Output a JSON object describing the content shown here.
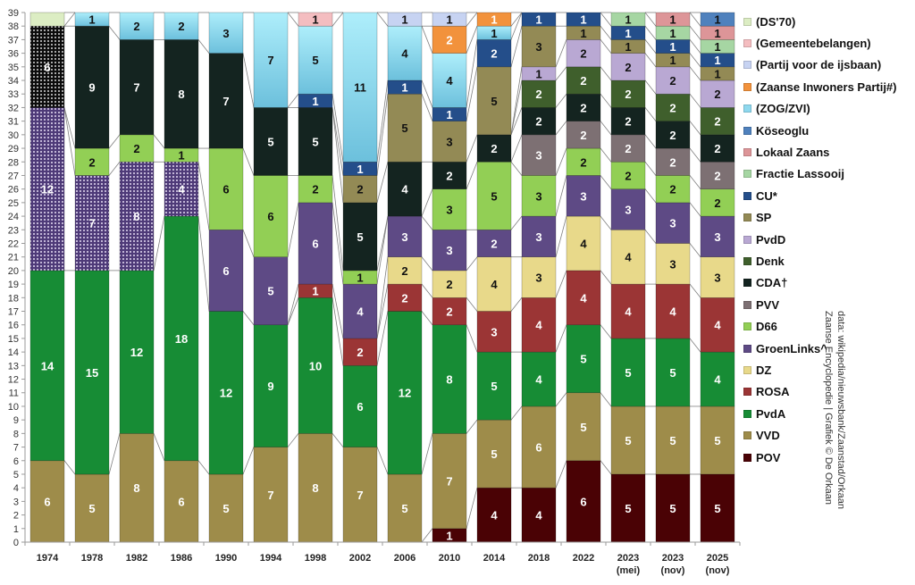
{
  "chart_data": {
    "type": "bar",
    "stacked": true,
    "title": "",
    "xlabel": "",
    "ylabel": "",
    "ylim": [
      0,
      39
    ],
    "yticks": [
      0,
      1,
      2,
      3,
      4,
      5,
      6,
      7,
      8,
      9,
      10,
      11,
      12,
      13,
      14,
      15,
      16,
      17,
      18,
      19,
      20,
      21,
      22,
      23,
      24,
      25,
      26,
      27,
      28,
      29,
      30,
      31,
      32,
      33,
      34,
      35,
      36,
      37,
      38,
      39
    ],
    "categories": [
      "1974",
      "1978",
      "1982",
      "1986",
      "1990",
      "1994",
      "1998",
      "2002",
      "2006",
      "2010",
      "2014",
      "2018",
      "2022",
      "2023 (mei)",
      "2023 (nov)",
      "2025 (nov)"
    ],
    "category_lines": [
      [
        "1974"
      ],
      [
        "1978"
      ],
      [
        "1982"
      ],
      [
        "1986"
      ],
      [
        "1990"
      ],
      [
        "1994"
      ],
      [
        "1998"
      ],
      [
        "2002"
      ],
      [
        "2006"
      ],
      [
        "2010"
      ],
      [
        "2014"
      ],
      [
        "2018"
      ],
      [
        "2022"
      ],
      [
        "2023",
        "(mei)"
      ],
      [
        "2023",
        "(nov)"
      ],
      [
        "2025",
        "(nov)"
      ]
    ],
    "series": [
      {
        "name": "POV",
        "color": "#4a0205",
        "text": "#ffffff",
        "values": [
          0,
          0,
          0,
          0,
          0,
          0,
          0,
          0,
          0,
          1,
          4,
          4,
          6,
          5,
          5,
          5
        ]
      },
      {
        "name": "VVD",
        "color": "#9e8c4a",
        "text": "#ffffff",
        "values": [
          6,
          5,
          8,
          6,
          5,
          7,
          8,
          7,
          5,
          7,
          5,
          6,
          5,
          5,
          5,
          5
        ]
      },
      {
        "name": "PvdA",
        "color": "#178c35",
        "text": "#ffffff",
        "values": [
          14,
          15,
          12,
          18,
          12,
          9,
          10,
          6,
          12,
          8,
          5,
          4,
          5,
          5,
          5,
          4
        ]
      },
      {
        "name": "ROSA",
        "color": "#9b3535",
        "text": "#ffffff",
        "values": [
          0,
          0,
          0,
          0,
          0,
          0,
          1,
          2,
          2,
          2,
          3,
          4,
          4,
          4,
          4,
          4
        ]
      },
      {
        "name": "DZ",
        "color": "#e8d98a",
        "text": "#111111",
        "values": [
          0,
          0,
          0,
          0,
          0,
          0,
          0,
          0,
          2,
          2,
          4,
          3,
          4,
          4,
          3,
          3
        ]
      },
      {
        "name": "GroenLinks^",
        "color": "#5e4a85",
        "text": "#ffffff",
        "values": [
          12,
          7,
          8,
          4,
          6,
          5,
          6,
          4,
          3,
          3,
          2,
          3,
          3,
          3,
          3,
          3
        ],
        "dotted": [
          true,
          true,
          true,
          true,
          false,
          false,
          false,
          false,
          false,
          false,
          false,
          false,
          false,
          false,
          false,
          false
        ]
      },
      {
        "name": "D66",
        "color": "#92cf55",
        "text": "#111111",
        "values": [
          0,
          2,
          2,
          1,
          6,
          6,
          2,
          1,
          0,
          3,
          5,
          3,
          2,
          2,
          2,
          2
        ]
      },
      {
        "name": "PVV",
        "color": "#7d7073",
        "text": "#ffffff",
        "values": [
          0,
          0,
          0,
          0,
          0,
          0,
          0,
          0,
          0,
          0,
          0,
          3,
          2,
          2,
          2,
          2
        ]
      },
      {
        "name": "CDA†",
        "color": "#142420",
        "text": "#ffffff",
        "values": [
          6,
          9,
          7,
          8,
          7,
          5,
          5,
          5,
          4,
          2,
          2,
          2,
          2,
          2,
          2,
          2
        ],
        "dotted": [
          true,
          false,
          false,
          false,
          false,
          false,
          false,
          false,
          false,
          false,
          false,
          false,
          false,
          false,
          false,
          false
        ]
      },
      {
        "name": "Denk",
        "color": "#3f5f2c",
        "text": "#ffffff",
        "values": [
          0,
          0,
          0,
          0,
          0,
          0,
          0,
          0,
          0,
          0,
          0,
          2,
          2,
          2,
          2,
          2
        ]
      },
      {
        "name": "PvdD",
        "color": "#b9a8d3",
        "text": "#111111",
        "values": [
          0,
          0,
          0,
          0,
          0,
          0,
          0,
          0,
          0,
          0,
          0,
          1,
          2,
          2,
          2,
          2
        ]
      },
      {
        "name": "SP",
        "color": "#938a55",
        "text": "#111111",
        "values": [
          0,
          0,
          0,
          0,
          0,
          0,
          0,
          2,
          5,
          3,
          5,
          3,
          1,
          1,
          1,
          1
        ]
      },
      {
        "name": "CU*",
        "color": "#244e8a",
        "text": "#ffffff",
        "values": [
          0,
          0,
          0,
          0,
          0,
          0,
          1,
          1,
          1,
          1,
          2,
          1,
          1,
          1,
          1,
          1
        ]
      },
      {
        "name": "Fractie Lassooij",
        "color": "#a6d6a3",
        "text": "#111111",
        "values": [
          0,
          0,
          0,
          0,
          0,
          0,
          0,
          0,
          0,
          0,
          0,
          0,
          0,
          1,
          1,
          1
        ]
      },
      {
        "name": "Lokaal Zaans",
        "color": "#dd9598",
        "text": "#111111",
        "values": [
          0,
          0,
          0,
          0,
          0,
          0,
          0,
          0,
          0,
          0,
          0,
          0,
          0,
          0,
          1,
          1
        ]
      },
      {
        "name": "Köseoglu",
        "color": "#4f81bd",
        "text": "#111111",
        "values": [
          0,
          0,
          0,
          0,
          0,
          0,
          0,
          0,
          0,
          0,
          0,
          0,
          0,
          0,
          0,
          1
        ]
      },
      {
        "name": "(ZOG/ZVI)",
        "color": "#8ed8ee",
        "text": "#111111",
        "values": [
          0,
          1,
          2,
          2,
          3,
          7,
          5,
          11,
          4,
          4,
          1,
          0,
          0,
          0,
          0,
          0
        ]
      },
      {
        "name": "(Zaanse Inwoners Partij#)",
        "color": "#f2923c",
        "text": "#ffffff",
        "values": [
          0,
          0,
          0,
          0,
          0,
          0,
          0,
          0,
          0,
          2,
          1,
          0,
          0,
          0,
          0,
          0
        ]
      },
      {
        "name": "(Partij voor de ijsbaan)",
        "color": "#c7d3f2",
        "text": "#111111",
        "values": [
          0,
          0,
          0,
          0,
          0,
          0,
          0,
          0,
          1,
          1,
          0,
          0,
          0,
          0,
          0,
          0
        ]
      },
      {
        "name": "(Gemeentebelangen)",
        "color": "#f4bdc0",
        "text": "#111111",
        "values": [
          0,
          0,
          0,
          0,
          0,
          0,
          1,
          0,
          0,
          0,
          0,
          0,
          0,
          0,
          0,
          0
        ]
      },
      {
        "name": "(DS'70)",
        "color": "#dcedc3",
        "text": "#111111",
        "values": [
          1,
          0,
          0,
          0,
          0,
          0,
          0,
          0,
          0,
          0,
          0,
          0,
          0,
          0,
          0,
          0
        ],
        "hide_labels": true
      }
    ],
    "legend": {
      "placement": "right",
      "order": [
        "(DS'70)",
        "(Gemeentebelangen)",
        "(Partij voor de ijsbaan)",
        "(Zaanse Inwoners Partij#)",
        "(ZOG/ZVI)",
        "Köseoglu",
        "Lokaal Zaans",
        "Fractie Lassooij",
        "CU*",
        "SP",
        "PvdD",
        "Denk",
        "CDA†",
        "PVV",
        "D66",
        "GroenLinks^",
        "DZ",
        "ROSA",
        "PvdA",
        "VVD",
        "POV"
      ]
    },
    "grid": false,
    "series_lines": true,
    "source_lines": [
      "data: wikipedia/nieuwsbank/Zaanstad/Orkaan",
      "Zaanse Encyclopedie | Grafiek © De Orkaan"
    ]
  }
}
